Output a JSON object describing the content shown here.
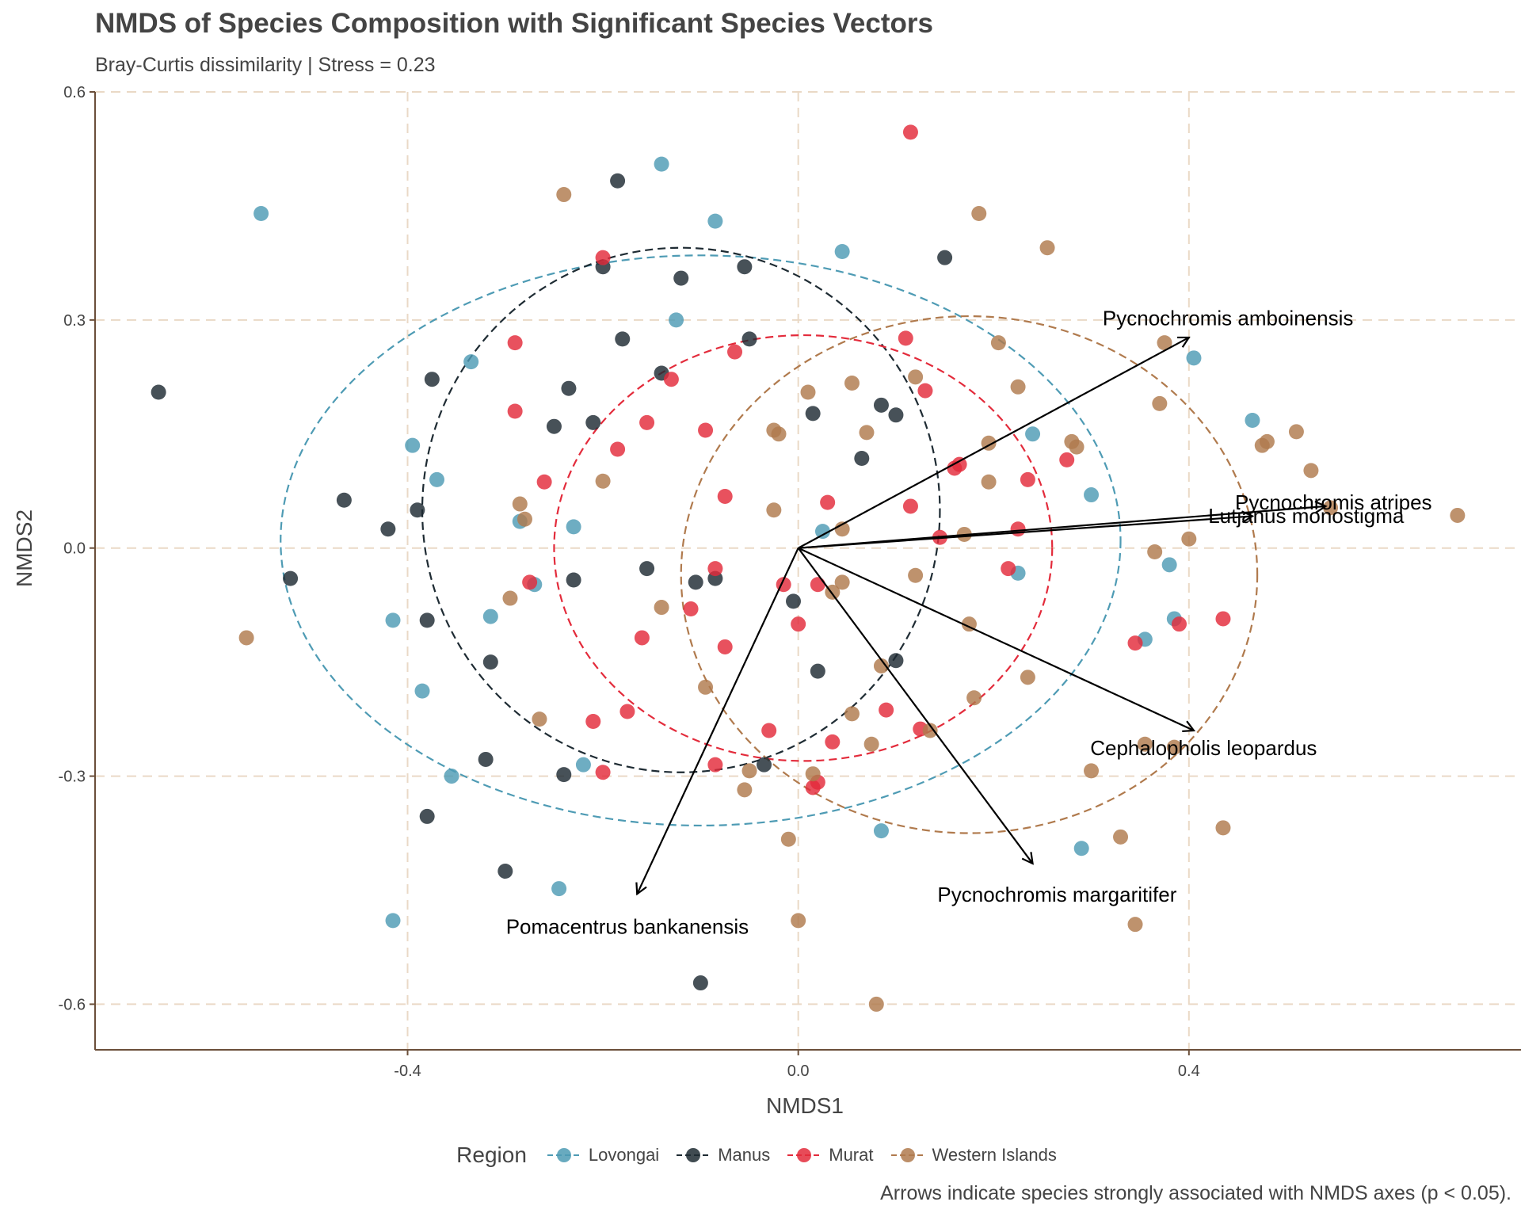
{
  "chart_data": {
    "type": "scatter",
    "title": "NMDS of Species Composition with Significant Species Vectors",
    "subtitle": "Bray-Curtis dissimilarity | Stress = 0.23",
    "caption": "Arrows indicate species strongly associated with NMDS axes (p < 0.05).",
    "xlabel": "NMDS1",
    "ylabel": "NMDS2",
    "xlim": [
      -0.72,
      0.74
    ],
    "ylim": [
      -0.66,
      0.6
    ],
    "x_ticks": [
      -0.4,
      0.0,
      0.4
    ],
    "x_tick_labels": [
      "-0.4",
      "0.0",
      "0.4"
    ],
    "y_ticks": [
      -0.6,
      -0.3,
      0.0,
      0.3,
      0.6
    ],
    "y_tick_labels": [
      "-0.6",
      "-0.3",
      "0.0",
      "0.3",
      "0.6"
    ],
    "grid": true,
    "legend": {
      "title": "Region",
      "position": "bottom",
      "entries": [
        "Lovongai",
        "Manus",
        "Murat",
        "Western Islands"
      ]
    },
    "series": [
      {
        "name": "Lovongai",
        "color": "#4E9BB4",
        "points": [
          [
            -0.55,
            0.44
          ],
          [
            -0.14,
            0.505
          ],
          [
            -0.085,
            0.43
          ],
          [
            0.045,
            0.39
          ],
          [
            -0.125,
            0.3
          ],
          [
            -0.335,
            0.245
          ],
          [
            -0.395,
            0.135
          ],
          [
            -0.37,
            0.09
          ],
          [
            -0.285,
            0.035
          ],
          [
            -0.23,
            0.028
          ],
          [
            -0.27,
            -0.048
          ],
          [
            -0.415,
            -0.095
          ],
          [
            -0.315,
            -0.09
          ],
          [
            -0.385,
            -0.188
          ],
          [
            -0.355,
            -0.3
          ],
          [
            -0.22,
            -0.285
          ],
          [
            -0.245,
            -0.448
          ],
          [
            -0.415,
            -0.49
          ],
          [
            0.025,
            0.022
          ],
          [
            0.405,
            0.25
          ],
          [
            0.465,
            0.168
          ],
          [
            0.24,
            0.15
          ],
          [
            0.3,
            0.07
          ],
          [
            0.225,
            -0.033
          ],
          [
            0.38,
            -0.022
          ],
          [
            0.385,
            -0.093
          ],
          [
            0.355,
            -0.12
          ],
          [
            0.085,
            -0.372
          ],
          [
            0.29,
            -0.395
          ]
        ]
      },
      {
        "name": "Manus",
        "color": "#1E2B33",
        "points": [
          [
            -0.655,
            0.205
          ],
          [
            -0.185,
            0.483
          ],
          [
            -0.2,
            0.37
          ],
          [
            -0.12,
            0.355
          ],
          [
            -0.055,
            0.37
          ],
          [
            -0.05,
            0.275
          ],
          [
            -0.18,
            0.275
          ],
          [
            -0.14,
            0.23
          ],
          [
            -0.235,
            0.21
          ],
          [
            -0.375,
            0.222
          ],
          [
            -0.25,
            0.16
          ],
          [
            -0.21,
            0.165
          ],
          [
            -0.465,
            0.063
          ],
          [
            -0.39,
            0.05
          ],
          [
            -0.42,
            0.025
          ],
          [
            -0.52,
            -0.04
          ],
          [
            -0.38,
            -0.095
          ],
          [
            -0.315,
            -0.15
          ],
          [
            -0.155,
            -0.027
          ],
          [
            -0.105,
            -0.045
          ],
          [
            -0.085,
            -0.04
          ],
          [
            -0.23,
            -0.042
          ],
          [
            -0.32,
            -0.278
          ],
          [
            -0.24,
            -0.298
          ],
          [
            -0.38,
            -0.353
          ],
          [
            -0.3,
            -0.425
          ],
          [
            -0.1,
            -0.572
          ],
          [
            -0.035,
            -0.285
          ],
          [
            0.015,
            0.177
          ],
          [
            -0.005,
            -0.07
          ],
          [
            0.02,
            -0.162
          ],
          [
            0.065,
            0.118
          ],
          [
            0.085,
            0.188
          ],
          [
            0.1,
            0.175
          ],
          [
            0.1,
            -0.148
          ],
          [
            0.15,
            0.382
          ]
        ]
      },
      {
        "name": "Murat",
        "color": "#E32B3B",
        "points": [
          [
            0.115,
            0.547
          ],
          [
            -0.2,
            0.382
          ],
          [
            -0.29,
            0.27
          ],
          [
            -0.065,
            0.258
          ],
          [
            0.11,
            0.276
          ],
          [
            -0.13,
            0.222
          ],
          [
            0.13,
            0.207
          ],
          [
            -0.29,
            0.18
          ],
          [
            -0.155,
            0.165
          ],
          [
            -0.185,
            0.13
          ],
          [
            -0.095,
            0.155
          ],
          [
            -0.26,
            0.087
          ],
          [
            -0.075,
            0.068
          ],
          [
            0.03,
            0.06
          ],
          [
            0.115,
            0.055
          ],
          [
            0.16,
            0.105
          ],
          [
            0.165,
            0.11
          ],
          [
            0.235,
            0.09
          ],
          [
            0.275,
            0.116
          ],
          [
            0.145,
            0.014
          ],
          [
            0.225,
            0.025
          ],
          [
            0.215,
            -0.027
          ],
          [
            -0.275,
            -0.045
          ],
          [
            -0.085,
            -0.027
          ],
          [
            -0.015,
            -0.048
          ],
          [
            0.02,
            -0.048
          ],
          [
            -0.11,
            -0.08
          ],
          [
            -0.16,
            -0.118
          ],
          [
            -0.075,
            -0.13
          ],
          [
            0.0,
            -0.1
          ],
          [
            -0.21,
            -0.228
          ],
          [
            -0.175,
            -0.215
          ],
          [
            -0.03,
            -0.24
          ],
          [
            0.035,
            -0.255
          ],
          [
            0.09,
            -0.213
          ],
          [
            0.125,
            -0.238
          ],
          [
            0.345,
            -0.125
          ],
          [
            0.39,
            -0.1
          ],
          [
            0.435,
            -0.093
          ],
          [
            -0.2,
            -0.295
          ],
          [
            -0.085,
            -0.285
          ],
          [
            0.015,
            -0.315
          ],
          [
            0.02,
            -0.308
          ]
        ]
      },
      {
        "name": "Western Islands",
        "color": "#B07A4D",
        "points": [
          [
            -0.24,
            0.465
          ],
          [
            0.185,
            0.44
          ],
          [
            0.255,
            0.395
          ],
          [
            0.205,
            0.27
          ],
          [
            0.375,
            0.27
          ],
          [
            0.055,
            0.217
          ],
          [
            0.12,
            0.225
          ],
          [
            0.225,
            0.212
          ],
          [
            0.01,
            0.205
          ],
          [
            0.37,
            0.19
          ],
          [
            -0.02,
            0.15
          ],
          [
            -0.025,
            0.155
          ],
          [
            0.07,
            0.152
          ],
          [
            0.195,
            0.138
          ],
          [
            0.28,
            0.14
          ],
          [
            0.285,
            0.133
          ],
          [
            0.475,
            0.135
          ],
          [
            0.48,
            0.14
          ],
          [
            0.51,
            0.153
          ],
          [
            0.525,
            0.102
          ],
          [
            -0.2,
            0.088
          ],
          [
            0.195,
            0.087
          ],
          [
            -0.285,
            0.058
          ],
          [
            -0.28,
            0.038
          ],
          [
            -0.025,
            0.05
          ],
          [
            0.045,
            0.025
          ],
          [
            0.17,
            0.018
          ],
          [
            0.4,
            0.012
          ],
          [
            0.365,
            -0.005
          ],
          [
            0.675,
            0.043
          ],
          [
            0.545,
            0.053
          ],
          [
            -0.565,
            -0.118
          ],
          [
            -0.295,
            -0.066
          ],
          [
            -0.14,
            -0.078
          ],
          [
            0.035,
            -0.058
          ],
          [
            0.045,
            -0.045
          ],
          [
            0.12,
            -0.036
          ],
          [
            0.175,
            -0.1
          ],
          [
            -0.095,
            -0.183
          ],
          [
            -0.265,
            -0.225
          ],
          [
            0.085,
            -0.155
          ],
          [
            0.18,
            -0.197
          ],
          [
            0.235,
            -0.17
          ],
          [
            0.055,
            -0.218
          ],
          [
            0.135,
            -0.24
          ],
          [
            -0.055,
            -0.318
          ],
          [
            -0.05,
            -0.293
          ],
          [
            0.015,
            -0.297
          ],
          [
            0.075,
            -0.258
          ],
          [
            0.3,
            -0.293
          ],
          [
            0.355,
            -0.258
          ],
          [
            0.385,
            -0.262
          ],
          [
            -0.01,
            -0.383
          ],
          [
            0.33,
            -0.38
          ],
          [
            0.435,
            -0.368
          ],
          [
            0.0,
            -0.49
          ],
          [
            0.345,
            -0.495
          ],
          [
            0.08,
            -0.6
          ]
        ]
      }
    ],
    "ellipses": [
      {
        "region": "Lovongai",
        "color": "#4E9BB4",
        "cx": -0.1,
        "cy": 0.01,
        "rx": 0.43,
        "ry": 0.375
      },
      {
        "region": "Manus",
        "color": "#1E2B33",
        "cx": -0.12,
        "cy": 0.05,
        "rx": 0.265,
        "ry": 0.345
      },
      {
        "region": "Murat",
        "color": "#E32B3B",
        "cx": 0.005,
        "cy": 0.0,
        "rx": 0.255,
        "ry": 0.28
      },
      {
        "region": "Western Islands",
        "color": "#B07A4D",
        "cx": 0.175,
        "cy": -0.035,
        "rx": 0.295,
        "ry": 0.34
      }
    ],
    "vectors": [
      {
        "species": "Pycnochromis amboinensis",
        "x": 0.4,
        "y": 0.277,
        "label_x": 0.44,
        "label_y": 0.3
      },
      {
        "species": "Pycnochromis atripes",
        "x": 0.54,
        "y": 0.055,
        "label_x": 0.548,
        "label_y": 0.058
      },
      {
        "species": "Lutjanus monostigma",
        "x": 0.465,
        "y": 0.042,
        "label_x": 0.52,
        "label_y": 0.04
      },
      {
        "species": "Cephalopholis leopardus",
        "x": 0.405,
        "y": -0.24,
        "label_x": 0.415,
        "label_y": -0.265
      },
      {
        "species": "Pycnochromis margaritifer",
        "x": 0.24,
        "y": -0.415,
        "label_x": 0.265,
        "label_y": -0.458
      },
      {
        "species": "Pomacentrus bankanensis",
        "x": -0.165,
        "y": -0.455,
        "label_x": -0.175,
        "label_y": -0.5
      }
    ]
  }
}
